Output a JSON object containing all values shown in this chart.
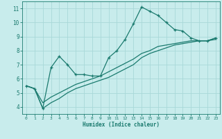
{
  "x": [
    0,
    1,
    2,
    3,
    4,
    5,
    6,
    7,
    8,
    9,
    10,
    11,
    12,
    13,
    14,
    15,
    16,
    17,
    18,
    19,
    20,
    21,
    22,
    23
  ],
  "line1": [
    5.5,
    5.3,
    3.9,
    6.8,
    7.6,
    7.0,
    6.3,
    6.3,
    6.2,
    6.2,
    7.5,
    8.0,
    8.8,
    9.9,
    11.1,
    10.8,
    10.5,
    10.0,
    9.5,
    9.4,
    8.9,
    8.7,
    8.7,
    8.9
  ],
  "line2": [
    5.5,
    5.3,
    4.3,
    4.7,
    5.0,
    5.3,
    5.6,
    5.8,
    6.0,
    6.2,
    6.5,
    6.8,
    7.1,
    7.4,
    7.8,
    8.0,
    8.3,
    8.4,
    8.5,
    8.6,
    8.7,
    8.7,
    8.7,
    8.8
  ],
  "line3": [
    5.5,
    5.3,
    3.9,
    4.3,
    4.6,
    5.0,
    5.3,
    5.5,
    5.7,
    5.9,
    6.1,
    6.4,
    6.7,
    7.0,
    7.5,
    7.8,
    8.0,
    8.2,
    8.4,
    8.5,
    8.6,
    8.7,
    8.7,
    8.9
  ],
  "line_color": "#1a7a6e",
  "bg_color": "#c8ecec",
  "grid_color": "#a8d8d8",
  "xlabel": "Humidex (Indice chaleur)",
  "xlim": [
    -0.5,
    23.5
  ],
  "ylim": [
    3.5,
    11.5
  ],
  "yticks": [
    4,
    5,
    6,
    7,
    8,
    9,
    10,
    11
  ],
  "xticks": [
    0,
    1,
    2,
    3,
    4,
    5,
    6,
    7,
    8,
    9,
    10,
    11,
    12,
    13,
    14,
    15,
    16,
    17,
    18,
    19,
    20,
    21,
    22,
    23
  ]
}
